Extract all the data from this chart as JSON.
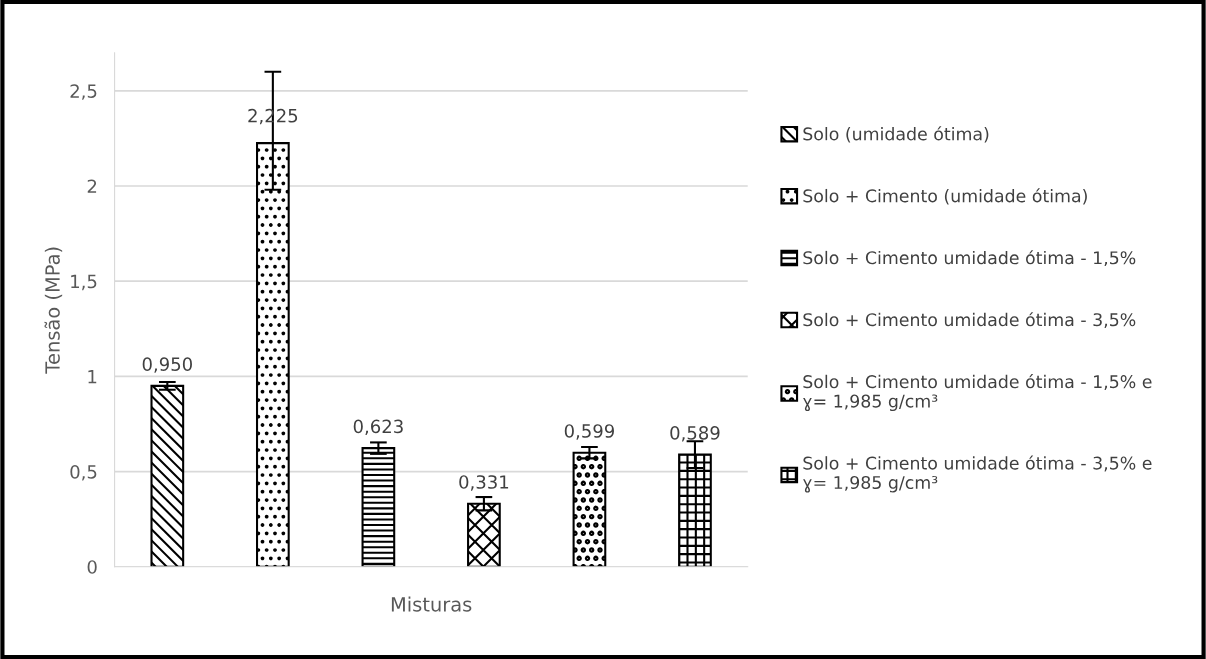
{
  "chart_data": {
    "type": "bar",
    "xlabel": "Misturas",
    "ylabel": "Tensão (MPa)",
    "categories": [
      null,
      null,
      null,
      null,
      null,
      null
    ],
    "series": [
      {
        "name": "Solo (umidade ótima)",
        "color": "#000000",
        "values": [
          0.95,
          null,
          null,
          null,
          null,
          null
        ],
        "errors": [
          0.02,
          null,
          null,
          null,
          null,
          null
        ],
        "value_labels": [
          "0,950",
          null,
          null,
          null,
          null,
          null
        ]
      },
      {
        "name": "Solo + Cimento (umidade ótima)",
        "color": "#000000",
        "values": [
          null,
          2.225,
          null,
          null,
          null,
          null
        ],
        "errors": [
          null,
          [
            1.98,
            2.6
          ],
          null,
          null,
          null,
          null
        ],
        "value_labels": [
          null,
          "2,225",
          null,
          null,
          null,
          null
        ]
      },
      {
        "name": "Solo + Cimento umidade ótima - 1,5%",
        "color": "#000000",
        "values": [
          null,
          null,
          0.623,
          null,
          null,
          null
        ],
        "errors": [
          null,
          null,
          0.03,
          null,
          null,
          null
        ],
        "value_labels": [
          null,
          null,
          "0,623",
          null,
          null,
          null
        ]
      },
      {
        "name": "Solo + Cimento umidade ótima - 3,5%",
        "color": "#000000",
        "values": [
          null,
          null,
          null,
          0.331,
          null,
          null
        ],
        "errors": [
          null,
          null,
          null,
          0.035,
          null,
          null
        ],
        "value_labels": [
          null,
          null,
          null,
          "0,331",
          null,
          null
        ]
      },
      {
        "name": "Solo + Cimento umidade ótima - 1,5% e\nɣ= 1,985 g/cm³",
        "color": "#000000",
        "values": [
          null,
          null,
          null,
          null,
          0.599,
          null
        ],
        "errors": [
          null,
          null,
          null,
          null,
          0.03,
          null
        ],
        "value_labels": [
          null,
          null,
          null,
          null,
          "0,599",
          null
        ]
      },
      {
        "name": "Solo + Cimento umidade ótima - 3,5% e\nɣ= 1,985 g/cm³",
        "color": "#000000",
        "values": [
          null,
          null,
          null,
          null,
          null,
          0.589
        ],
        "errors": [
          null,
          null,
          null,
          null,
          null,
          0.07
        ],
        "value_labels": [
          null,
          null,
          null,
          null,
          null,
          "0,589"
        ]
      }
    ],
    "ylim": [
      0,
      2.7
    ],
    "yticks": [
      0,
      {
        "value": 0.5,
        "label": "0,5"
      },
      1,
      {
        "value": 1.5,
        "label": "1,5"
      },
      2,
      {
        "value": 2.5,
        "label": "2,5"
      }
    ],
    "grid": "y",
    "legend": "right"
  }
}
